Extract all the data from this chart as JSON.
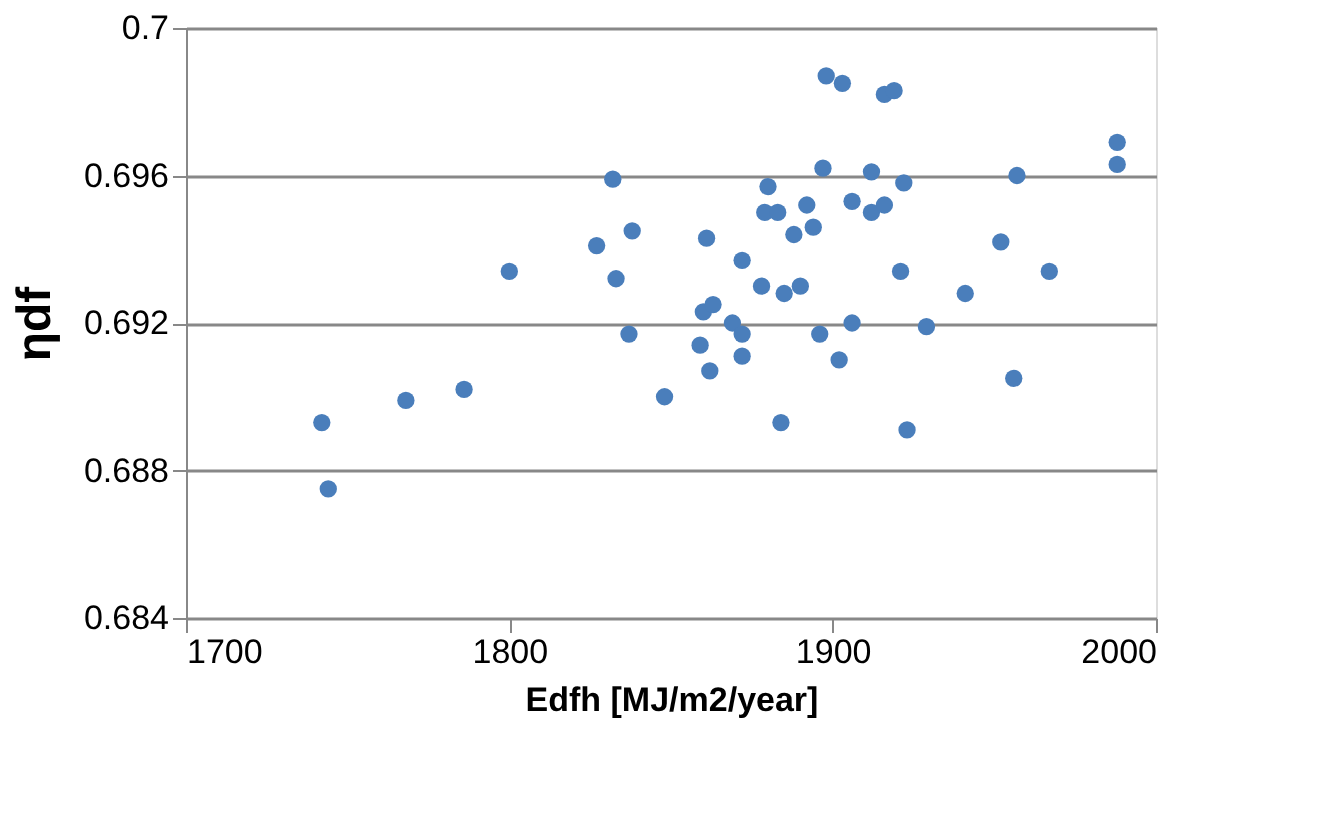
{
  "chart_data": {
    "type": "scatter",
    "xlabel": "Edfh [MJ/m2/year]",
    "ylabel": "ηdf",
    "x": [
      1742,
      1744,
      1768,
      1786,
      1800,
      1832,
      1827,
      1838,
      1833,
      1837,
      1848,
      1861,
      1872,
      1860,
      1863,
      1859,
      1862,
      1869,
      1872,
      1872,
      1898,
      1903,
      1916,
      1919,
      1988,
      1988,
      1897,
      1912,
      1957,
      1922,
      1880,
      1879,
      1883,
      1892,
      1906,
      1912,
      1916,
      1888,
      1894,
      1952,
      1878,
      1885,
      1890,
      1921,
      1967,
      1941,
      1896,
      1906,
      1929,
      1902,
      1956,
      1884,
      1923
    ],
    "values": [
      0.6893,
      0.6875,
      0.6899,
      0.6902,
      0.6934,
      0.6959,
      0.6941,
      0.6945,
      0.6932,
      0.6917,
      0.69,
      0.6943,
      0.6937,
      0.6923,
      0.6925,
      0.6914,
      0.6907,
      0.692,
      0.6917,
      0.6911,
      0.6987,
      0.6985,
      0.6982,
      0.6983,
      0.6969,
      0.6963,
      0.6962,
      0.6961,
      0.696,
      0.6958,
      0.6957,
      0.695,
      0.695,
      0.6952,
      0.6953,
      0.695,
      0.6952,
      0.6944,
      0.6946,
      0.6942,
      0.693,
      0.6928,
      0.693,
      0.6934,
      0.6934,
      0.6928,
      0.6917,
      0.692,
      0.6919,
      0.691,
      0.6905,
      0.6893,
      0.6891
    ],
    "color": "#4a7ebb",
    "marker": "circle",
    "xlim": [
      1700,
      2000
    ],
    "xticks": [
      1700,
      1800,
      1900,
      2000
    ],
    "ylim": [
      0.684,
      0.7
    ],
    "yticks": [
      0.684,
      0.688,
      0.692,
      0.696,
      0.7
    ],
    "grid": "y"
  }
}
